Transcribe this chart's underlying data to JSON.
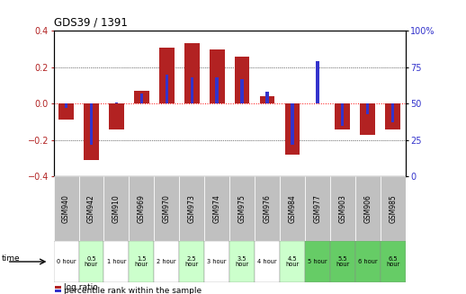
{
  "title": "GDS39 / 1391",
  "samples": [
    "GSM940",
    "GSM942",
    "GSM910",
    "GSM969",
    "GSM970",
    "GSM973",
    "GSM974",
    "GSM975",
    "GSM976",
    "GSM984",
    "GSM977",
    "GSM903",
    "GSM906",
    "GSM985"
  ],
  "times": [
    "0 hour",
    "0.5\nhour",
    "1 hour",
    "1.5\nhour",
    "2 hour",
    "2.5\nhour",
    "3 hour",
    "3.5\nhour",
    "4 hour",
    "4.5\nhour",
    "5 hour",
    "5.5\nhour",
    "6 hour",
    "6.5\nhour"
  ],
  "log_ratio": [
    -0.09,
    -0.31,
    -0.14,
    0.07,
    0.31,
    0.33,
    0.3,
    0.26,
    0.04,
    -0.28,
    0.0,
    -0.14,
    -0.17,
    -0.14
  ],
  "percentile": [
    47,
    22,
    51,
    57,
    70,
    68,
    68,
    67,
    58,
    22,
    79,
    35,
    43,
    37
  ],
  "bar_color": "#B22222",
  "blue_color": "#3333CC",
  "ylim": [
    -0.4,
    0.4
  ],
  "right_ylim": [
    0,
    100
  ],
  "right_yticks": [
    0,
    25,
    50,
    75,
    100
  ],
  "right_yticklabels": [
    "0",
    "25",
    "50",
    "75",
    "100%"
  ],
  "left_yticks": [
    -0.4,
    -0.2,
    0.0,
    0.2,
    0.4
  ],
  "cell_bg_white": "#FFFFFF",
  "cell_bg_light_green": "#CCFFCC",
  "cell_bg_dark_green": "#66CC66",
  "sample_row_bg": "#C0C0C0",
  "legend_red": "#B22222",
  "legend_blue": "#3333CC",
  "dark_green_indices": [
    10,
    11,
    12,
    13
  ],
  "light_green_indices": [
    1,
    3,
    5,
    7,
    9
  ]
}
